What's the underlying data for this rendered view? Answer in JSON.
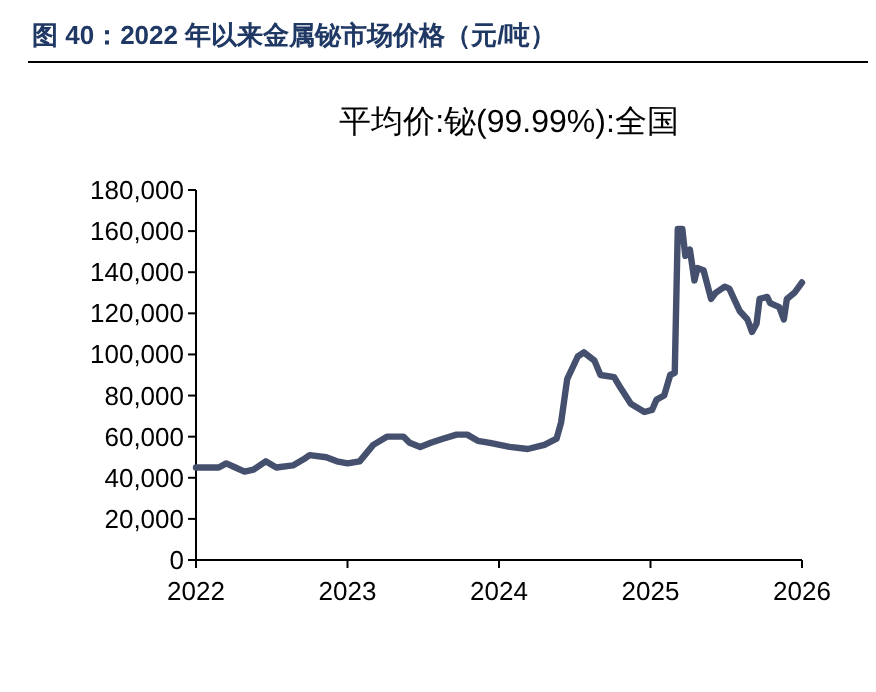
{
  "chart_data": {
    "type": "line",
    "title": "图 40：2022 年以来金属铋市场价格（元/吨）",
    "subtitle": "平均价:铋(99.99%):全国",
    "xlim": [
      2022,
      2026
    ],
    "xticks": [
      2022,
      2023,
      2024,
      2025,
      2026
    ],
    "ylim": [
      0,
      180000
    ],
    "yticks": [
      {
        "value": 0,
        "label": "0"
      },
      {
        "value": 20000,
        "label": "20,000"
      },
      {
        "value": 40000,
        "label": "40,000"
      },
      {
        "value": 60000,
        "label": "60,000"
      },
      {
        "value": 80000,
        "label": "80,000"
      },
      {
        "value": 100000,
        "label": "100,000"
      },
      {
        "value": 120000,
        "label": "120,000"
      },
      {
        "value": 140000,
        "label": "140,000"
      },
      {
        "value": 160000,
        "label": "160,000"
      },
      {
        "value": 180000,
        "label": "180,000"
      }
    ],
    "marker": "none",
    "line_style": "solid",
    "series": [
      {
        "color": "#44506e",
        "x": [
          2022.0,
          2022.15,
          2022.2,
          2022.26,
          2022.32,
          2022.38,
          2022.46,
          2022.53,
          2022.64,
          2022.71,
          2022.75,
          2022.86,
          2022.93,
          2023.0,
          2023.08,
          2023.17,
          2023.26,
          2023.37,
          2023.41,
          2023.48,
          2023.55,
          2023.63,
          2023.72,
          2023.79,
          2023.86,
          2023.94,
          2024.07,
          2024.19,
          2024.3,
          2024.38,
          2024.41,
          2024.45,
          2024.52,
          2024.56,
          2024.63,
          2024.67,
          2024.76,
          2024.8,
          2024.87,
          2024.96,
          2025.01,
          2025.04,
          2025.09,
          2025.13,
          2025.16,
          2025.18,
          2025.21,
          2025.23,
          2025.26,
          2025.29,
          2025.31,
          2025.35,
          2025.4,
          2025.43,
          2025.49,
          2025.52,
          2025.59,
          2025.64,
          2025.67,
          2025.7,
          2025.72,
          2025.77,
          2025.79,
          2025.85,
          2025.88,
          2025.9,
          2025.95,
          2026.0
        ],
        "values": [
          45000,
          45000,
          47000,
          45000,
          43000,
          44000,
          48000,
          45000,
          46000,
          49000,
          51000,
          50000,
          48000,
          47000,
          48000,
          56000,
          60000,
          60000,
          57000,
          55000,
          57000,
          59000,
          61000,
          61000,
          58000,
          57000,
          55000,
          54000,
          56000,
          59000,
          67000,
          88000,
          99000,
          101000,
          97000,
          90000,
          89000,
          84000,
          76000,
          72000,
          73000,
          78000,
          80000,
          90000,
          91000,
          161000,
          161000,
          148000,
          151000,
          136000,
          142000,
          141000,
          127000,
          130000,
          133000,
          132000,
          121000,
          117000,
          111000,
          115000,
          127000,
          128000,
          125000,
          123000,
          117000,
          127000,
          130000,
          135000
        ]
      }
    ]
  }
}
